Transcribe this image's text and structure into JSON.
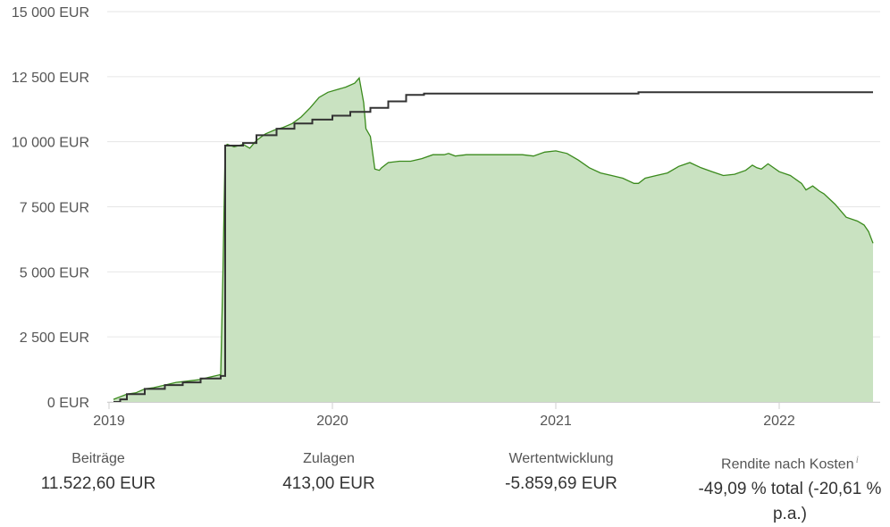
{
  "chart_data": {
    "type": "area",
    "ylim": [
      0,
      15000
    ],
    "y_ticks": [
      0,
      2500,
      5000,
      7500,
      10000,
      12500,
      15000
    ],
    "y_tick_labels": [
      "0 EUR",
      "2 500 EUR",
      "5 000 EUR",
      "7 500 EUR",
      "10 000 EUR",
      "12 500 EUR",
      "15 000 EUR"
    ],
    "x_ticks": [
      2019,
      2020,
      2021,
      2022
    ],
    "x_tick_labels": [
      "2019",
      "2020",
      "2021",
      "2022"
    ],
    "xlim": [
      2019.0,
      2022.43
    ],
    "grid": true,
    "series": [
      {
        "role": "portfolio_value",
        "style": "area",
        "color": "#3a8a1c",
        "fill": "#c9e2c1",
        "x": [
          2019.02,
          2019.05,
          2019.08,
          2019.12,
          2019.16,
          2019.2,
          2019.25,
          2019.3,
          2019.35,
          2019.4,
          2019.45,
          2019.5,
          2019.51,
          2019.52,
          2019.53,
          2019.56,
          2019.6,
          2019.63,
          2019.66,
          2019.7,
          2019.74,
          2019.78,
          2019.82,
          2019.86,
          2019.9,
          2019.94,
          2019.98,
          2020.02,
          2020.06,
          2020.1,
          2020.12,
          2020.14,
          2020.15,
          2020.17,
          2020.19,
          2020.21,
          2020.22,
          2020.25,
          2020.3,
          2020.35,
          2020.4,
          2020.45,
          2020.5,
          2020.52,
          2020.55,
          2020.6,
          2020.65,
          2020.7,
          2020.75,
          2020.8,
          2020.85,
          2020.9,
          2020.95,
          2021.0,
          2021.05,
          2021.1,
          2021.15,
          2021.2,
          2021.25,
          2021.3,
          2021.35,
          2021.37,
          2021.4,
          2021.45,
          2021.5,
          2021.55,
          2021.6,
          2021.65,
          2021.7,
          2021.75,
          2021.8,
          2021.85,
          2021.88,
          2021.9,
          2021.92,
          2021.95,
          2022.0,
          2022.05,
          2022.1,
          2022.12,
          2022.15,
          2022.18,
          2022.2,
          2022.25,
          2022.3,
          2022.35,
          2022.38,
          2022.4,
          2022.42
        ],
        "values": [
          100,
          200,
          300,
          350,
          500,
          550,
          650,
          750,
          800,
          850,
          950,
          1050,
          5000,
          9850,
          9900,
          9800,
          9900,
          9750,
          10050,
          10300,
          10450,
          10550,
          10700,
          10950,
          11300,
          11700,
          11900,
          12000,
          12100,
          12250,
          12450,
          11500,
          10500,
          10200,
          8950,
          8900,
          9000,
          9200,
          9250,
          9250,
          9350,
          9500,
          9500,
          9550,
          9450,
          9500,
          9500,
          9500,
          9500,
          9500,
          9500,
          9450,
          9600,
          9650,
          9550,
          9300,
          9000,
          8800,
          8700,
          8600,
          8400,
          8400,
          8600,
          8700,
          8800,
          9050,
          9200,
          9000,
          8850,
          8700,
          8750,
          8900,
          9100,
          9000,
          8950,
          9150,
          8850,
          8700,
          8400,
          8150,
          8300,
          8100,
          8000,
          7600,
          7100,
          6950,
          6800,
          6550,
          6100
        ]
      },
      {
        "role": "contributions",
        "style": "step",
        "color": "#333333",
        "x": [
          2019.02,
          2019.05,
          2019.08,
          2019.16,
          2019.25,
          2019.33,
          2019.41,
          2019.5,
          2019.52,
          2019.6,
          2019.66,
          2019.75,
          2019.83,
          2019.91,
          2020.0,
          2020.08,
          2020.17,
          2020.25,
          2020.33,
          2020.41,
          2020.5,
          2020.58,
          2020.75,
          2021.0,
          2021.25,
          2021.37,
          2021.5,
          2021.75,
          2022.0,
          2022.25,
          2022.42
        ],
        "values": [
          0,
          100,
          300,
          500,
          650,
          750,
          900,
          1000,
          9850,
          9950,
          10250,
          10500,
          10700,
          10850,
          11000,
          11150,
          11300,
          11550,
          11800,
          11850,
          11850,
          11850,
          11850,
          11850,
          11850,
          11900,
          11900,
          11900,
          11900,
          11900,
          11900
        ]
      }
    ]
  },
  "stats": {
    "beitraege_label": "Beiträge",
    "beitraege_value": "11.522,60 EUR",
    "zulagen_label": "Zulagen",
    "zulagen_value": "413,00 EUR",
    "wertentwicklung_label": "Wertentwicklung",
    "wertentwicklung_value": "-5.859,69 EUR",
    "rendite_label": "Rendite nach Kosten",
    "rendite_info_glyph": "i",
    "rendite_value_line1": "-49,09 % total (-20,61 %",
    "rendite_value_line2": "p.a.)"
  },
  "icons": {
    "info": "info-icon"
  }
}
